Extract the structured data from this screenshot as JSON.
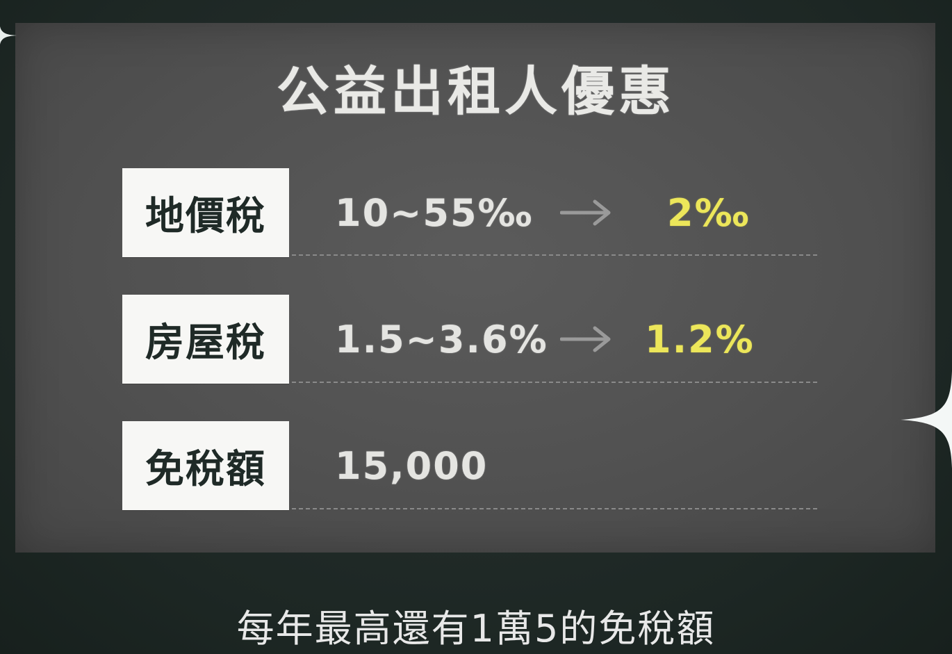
{
  "title": "公益出租人優惠",
  "rows": [
    {
      "label": "地價稅",
      "from": "10~55‰",
      "to": "2‰"
    },
    {
      "label": "房屋稅",
      "from": "1.5~3.6%",
      "to": "1.2%"
    },
    {
      "label": "免稅額",
      "from": "15,000"
    }
  ],
  "caption": "每年最高還有1萬5的免稅額",
  "colors": {
    "background": "#1f2b28",
    "board": "#525252",
    "label_box": "#f7f7f5",
    "label_text": "#1f2a27",
    "chalk_text": "#e4e4e1",
    "highlight": "#ece65a",
    "arrow": "#9a9a9a"
  },
  "icons": [
    "arrow-right-icon",
    "sparkle-icon"
  ]
}
